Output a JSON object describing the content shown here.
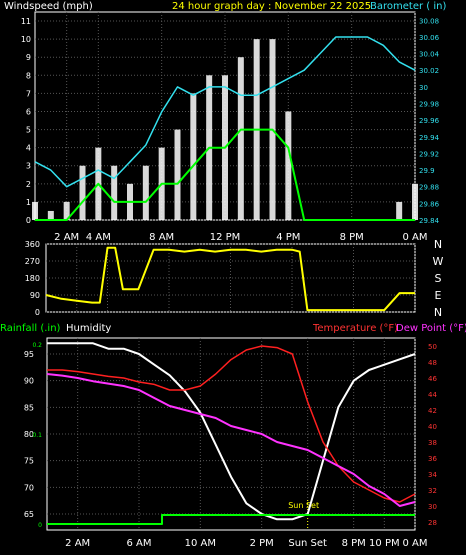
{
  "chart_data": [
    {
      "type": "line",
      "title": "24 hour graph day : November 22 2025",
      "left_axis_label": "Windspeed (mph)",
      "right_axis_label": "Barometer ( in)",
      "x_ticks": [
        "2 AM",
        "4 AM",
        "8 AM",
        "12 PM",
        "4 PM",
        "8 PM",
        "0 AM"
      ],
      "x_tick_hours": [
        2,
        4,
        8,
        12,
        16,
        20,
        24
      ],
      "y_left_ticks": [
        0,
        1,
        2,
        3,
        4,
        5,
        6,
        7,
        8,
        9,
        10,
        11
      ],
      "y_left_range": [
        0,
        11.5
      ],
      "y_right_ticks": [
        "29.84",
        "29.86",
        "29.88",
        "29.9",
        "29.92",
        "29.94",
        "29.96",
        "29.98",
        "30",
        "30.02",
        "30.04",
        "30.06",
        "30.08"
      ],
      "y_right_range": [
        29.84,
        30.09
      ],
      "grid": true,
      "colors": {
        "gust": "#ffffff",
        "wind": "#00ff00",
        "barometer": "#33e0ee",
        "text_title": "#ffff00"
      },
      "series": [
        {
          "role": "wind",
          "hours": [
            0,
            1,
            2,
            3,
            4,
            5,
            6,
            7,
            8,
            9,
            10,
            11,
            12,
            13,
            14,
            15,
            16,
            17,
            18,
            19,
            20,
            21,
            22,
            23,
            24
          ],
          "values": [
            0,
            0,
            0,
            1,
            2,
            1,
            1,
            1,
            2,
            2,
            3,
            4,
            4,
            5,
            5,
            5,
            4,
            0,
            0,
            0,
            0,
            0,
            0,
            0,
            0
          ]
        },
        {
          "role": "gust",
          "hours": [
            0,
            1,
            2,
            3,
            4,
            5,
            6,
            7,
            8,
            9,
            10,
            11,
            12,
            13,
            14,
            15,
            16,
            17,
            18,
            19,
            20,
            21,
            22,
            23,
            24
          ],
          "values": [
            1,
            0.5,
            1,
            3,
            4,
            3,
            2,
            3,
            4,
            5,
            7,
            8,
            8,
            9,
            10,
            10,
            6,
            0,
            0,
            0,
            0,
            0,
            0,
            1,
            2
          ]
        },
        {
          "role": "barometer",
          "hours": [
            0,
            1,
            2,
            3,
            4,
            5,
            6,
            7,
            8,
            9,
            10,
            11,
            12,
            13,
            14,
            15,
            16,
            17,
            18,
            19,
            20,
            21,
            22,
            23,
            24
          ],
          "values": [
            29.91,
            29.9,
            29.88,
            29.89,
            29.9,
            29.89,
            29.91,
            29.93,
            29.97,
            30.0,
            29.99,
            30.0,
            30.0,
            29.99,
            29.99,
            30.0,
            30.01,
            30.02,
            30.04,
            30.06,
            30.06,
            30.06,
            30.05,
            30.03,
            30.02
          ]
        }
      ]
    },
    {
      "type": "line",
      "title": "",
      "right_labels": [
        "N",
        "W",
        "S",
        "E",
        "N"
      ],
      "y_ticks": [
        0,
        90,
        180,
        270,
        360
      ],
      "y_range": [
        0,
        360
      ],
      "x_tick_hours": [
        2,
        4,
        8,
        12,
        16,
        20,
        24
      ],
      "colors": {
        "direction": "#ffff00"
      },
      "series": [
        {
          "role": "direction",
          "hours": [
            0,
            1,
            2,
            3,
            3.5,
            4,
            4.5,
            5,
            6,
            7,
            8,
            9,
            10,
            11,
            12,
            13,
            14,
            15,
            16,
            16.5,
            17,
            18,
            19,
            20,
            21,
            22,
            23,
            24
          ],
          "values": [
            90,
            70,
            60,
            50,
            50,
            340,
            340,
            120,
            120,
            330,
            330,
            320,
            330,
            320,
            330,
            330,
            320,
            330,
            330,
            320,
            10,
            10,
            10,
            10,
            10,
            10,
            100,
            100
          ]
        }
      ]
    },
    {
      "type": "line",
      "title": "",
      "labels": {
        "rainfall": "Rainfall (.in)",
        "humidity": "Humidity",
        "temperature": "Temperature (°F)",
        "dew_point": "Dew Point (°F)"
      },
      "x_ticks": [
        "2 AM",
        "6 AM",
        "10 AM",
        "2 PM",
        "Sun Set",
        "8 PM",
        "10 PM",
        "0 AM"
      ],
      "x_tick_hours": [
        2,
        6,
        10,
        14,
        17,
        20,
        22,
        24
      ],
      "sun_set_label": "Sun Set",
      "sun_set_hour": 17,
      "y_left_ticks": [
        65,
        70,
        75,
        80,
        85,
        90,
        95
      ],
      "y_left_range": [
        62,
        98
      ],
      "y_rain_ticks": [
        "0",
        "0.1",
        "0.2"
      ],
      "y_right_ticks": [
        28,
        30,
        32,
        34,
        36,
        38,
        40,
        42,
        44,
        46,
        48,
        50
      ],
      "y_right_range": [
        27,
        51
      ],
      "colors": {
        "rainfall": "#00ff00",
        "humidity": "#ffffff",
        "temperature": "#ff2020",
        "dew_point": "#ff33ff",
        "label_rain": "#00ff00",
        "label_humidity": "#ffffff",
        "label_temp": "#ff3333",
        "label_dew": "#ff33ff"
      },
      "series": [
        {
          "role": "humidity",
          "hours": [
            0,
            1,
            2,
            3,
            4,
            5,
            6,
            7,
            8,
            9,
            10,
            11,
            12,
            13,
            14,
            15,
            16,
            17,
            18,
            19,
            20,
            21,
            22,
            23,
            24
          ],
          "values": [
            97,
            97,
            97,
            97,
            96,
            96,
            95,
            93,
            91,
            88,
            84,
            78,
            72,
            67,
            65,
            64,
            64,
            65,
            75,
            85,
            90,
            92,
            93,
            94,
            95
          ]
        },
        {
          "role": "temperature",
          "hours": [
            0,
            1,
            2,
            3,
            4,
            5,
            6,
            7,
            8,
            9,
            10,
            11,
            12,
            13,
            14,
            15,
            16,
            17,
            18,
            19,
            20,
            21,
            22,
            23,
            24
          ],
          "values": [
            47,
            47,
            46.8,
            46.5,
            46.2,
            46,
            45.5,
            45.2,
            44.5,
            44.5,
            45,
            46.5,
            48.3,
            49.5,
            50,
            49.8,
            49,
            43,
            38,
            35,
            33,
            32,
            31,
            30.5,
            31.5
          ]
        },
        {
          "role": "dew_point",
          "hours": [
            0,
            1,
            2,
            3,
            4,
            5,
            6,
            7,
            8,
            9,
            10,
            11,
            12,
            13,
            14,
            15,
            16,
            17,
            18,
            19,
            20,
            21,
            22,
            23,
            24
          ],
          "values": [
            46.5,
            46.3,
            46,
            45.6,
            45.3,
            45,
            44.5,
            43.5,
            42.5,
            42,
            41.5,
            41,
            40,
            39.5,
            39,
            38,
            37.5,
            37,
            36,
            35,
            34,
            32.5,
            31.5,
            30,
            30.5
          ]
        },
        {
          "role": "rainfall",
          "hours": [
            0,
            7.5,
            7.5,
            24
          ],
          "values": [
            0,
            0,
            0.01,
            0.01
          ]
        }
      ]
    }
  ]
}
